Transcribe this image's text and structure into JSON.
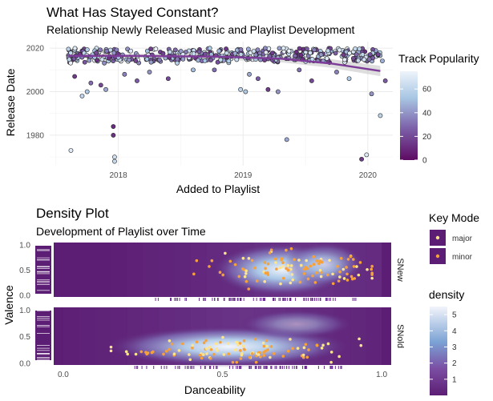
{
  "charts": {
    "top": {
      "title": "What Has Stayed Constant?",
      "subtitle": "Relationship Newly Released Music and Playlist Development",
      "xlabel": "Added to Playlist",
      "ylabel": "Release Date",
      "legend_title": "Track Popularity"
    },
    "bottom": {
      "title": "Density Plot",
      "subtitle": "Development of Playlist over Time",
      "xlabel": "Danceability",
      "ylabel": "Valence",
      "facet_new": "SNew",
      "facet_old": "SNold",
      "key_legend_title": "Key Mode",
      "key_major": "major",
      "key_minor": "minor",
      "density_legend_title": "density"
    }
  },
  "chart_data": [
    {
      "type": "scatter",
      "title": "What Has Stayed Constant?",
      "subtitle": "Relationship Newly Released Music and Playlist Development",
      "xlabel": "Added to Playlist",
      "ylabel": "Release Date",
      "xlim": [
        2017.45,
        2020.2
      ],
      "ylim": [
        1966,
        2023
      ],
      "x_ticks": [
        2018,
        2019,
        2020
      ],
      "y_ticks": [
        1980,
        2000,
        2020
      ],
      "color_legend": {
        "title": "Track Popularity",
        "range": [
          0,
          75
        ],
        "ticks": [
          0,
          20,
          40,
          60
        ]
      },
      "smooth_trend": [
        [
          2017.6,
          2016.5
        ],
        [
          2018.2,
          2016.4
        ],
        [
          2018.8,
          2016.1
        ],
        [
          2019.3,
          2015.2
        ],
        [
          2019.7,
          2013.0
        ],
        [
          2020.1,
          2009.5
        ]
      ],
      "points_dense_band": {
        "x_range": [
          2017.6,
          2020.12
        ],
        "y_range": [
          2013,
          2021
        ],
        "popularity_range": [
          10,
          75
        ]
      },
      "points": [
        {
          "x": 2017.62,
          "y": 1973,
          "pop": 70
        },
        {
          "x": 2017.65,
          "y": 2007,
          "pop": 15
        },
        {
          "x": 2017.71,
          "y": 1998,
          "pop": 60
        },
        {
          "x": 2017.75,
          "y": 2000,
          "pop": 55
        },
        {
          "x": 2017.78,
          "y": 2004,
          "pop": 30
        },
        {
          "x": 2017.86,
          "y": 2003,
          "pop": 20
        },
        {
          "x": 2017.9,
          "y": 2001,
          "pop": 45
        },
        {
          "x": 2017.97,
          "y": 1970,
          "pop": 65
        },
        {
          "x": 2017.97,
          "y": 1968,
          "pop": 62
        },
        {
          "x": 2017.96,
          "y": 1984,
          "pop": 10
        },
        {
          "x": 2017.96,
          "y": 1980,
          "pop": 12
        },
        {
          "x": 2018.05,
          "y": 2008,
          "pop": 35
        },
        {
          "x": 2018.15,
          "y": 2005,
          "pop": 25
        },
        {
          "x": 2018.25,
          "y": 2009,
          "pop": 40
        },
        {
          "x": 2018.4,
          "y": 2006,
          "pop": 20
        },
        {
          "x": 2018.6,
          "y": 2010,
          "pop": 50
        },
        {
          "x": 2018.77,
          "y": 2010,
          "pop": 30
        },
        {
          "x": 2018.98,
          "y": 2001,
          "pop": 60
        },
        {
          "x": 2019.02,
          "y": 2000,
          "pop": 55
        },
        {
          "x": 2019.05,
          "y": 2008,
          "pop": 45
        },
        {
          "x": 2019.12,
          "y": 2006,
          "pop": 25
        },
        {
          "x": 2019.2,
          "y": 2001,
          "pop": 15
        },
        {
          "x": 2019.28,
          "y": 2000,
          "pop": 40
        },
        {
          "x": 2019.35,
          "y": 1978,
          "pop": 45
        },
        {
          "x": 2019.45,
          "y": 2010,
          "pop": 30
        },
        {
          "x": 2019.55,
          "y": 2005,
          "pop": 20
        },
        {
          "x": 2019.75,
          "y": 2009,
          "pop": 35
        },
        {
          "x": 2019.85,
          "y": 2006,
          "pop": 55
        },
        {
          "x": 2019.95,
          "y": 1969,
          "pop": 15
        },
        {
          "x": 2019.99,
          "y": 1971,
          "pop": 70
        },
        {
          "x": 2020.03,
          "y": 1999,
          "pop": 40
        },
        {
          "x": 2020.1,
          "y": 1989,
          "pop": 60
        },
        {
          "x": 2020.14,
          "y": 2005,
          "pop": 25
        }
      ]
    },
    {
      "type": "heatmap",
      "title": "Density Plot",
      "subtitle": "Development of Playlist over Time",
      "xlabel": "Danceability",
      "ylabel": "Valence",
      "xlim": [
        -0.03,
        1.03
      ],
      "ylim": [
        -0.03,
        1.05
      ],
      "x_ticks": [
        0.0,
        0.5,
        1.0
      ],
      "y_ticks": [
        0.0,
        0.5,
        1.0
      ],
      "facets": [
        "SNew",
        "SNold"
      ],
      "key_mode_legend": {
        "title": "Key Mode",
        "levels": [
          "major",
          "minor"
        ],
        "colors": {
          "major": "#fde48f",
          "minor": "#f7a13a"
        }
      },
      "density_legend": {
        "title": "density",
        "range": [
          0,
          5.5
        ],
        "ticks": [
          1,
          2,
          3,
          4,
          5
        ]
      },
      "density_peaks": [
        {
          "facet": "SNew",
          "x": 0.72,
          "y": 0.55,
          "peak_density": 5.5
        },
        {
          "facet": "SNold",
          "x": 0.55,
          "y": 0.25,
          "peak_density": 5.2
        }
      ]
    }
  ],
  "colors": {
    "popularity_low": "#5e0b63",
    "popularity_mid": "#7b5ea7",
    "popularity_high": "#eef4fb",
    "trend_line": "#7d3c98",
    "density_low": "#5c1e74",
    "density_high": "#f2f4fb",
    "panel_grid": "#ebebeb",
    "key_major": "#fde48f",
    "key_minor": "#f7a13a"
  }
}
